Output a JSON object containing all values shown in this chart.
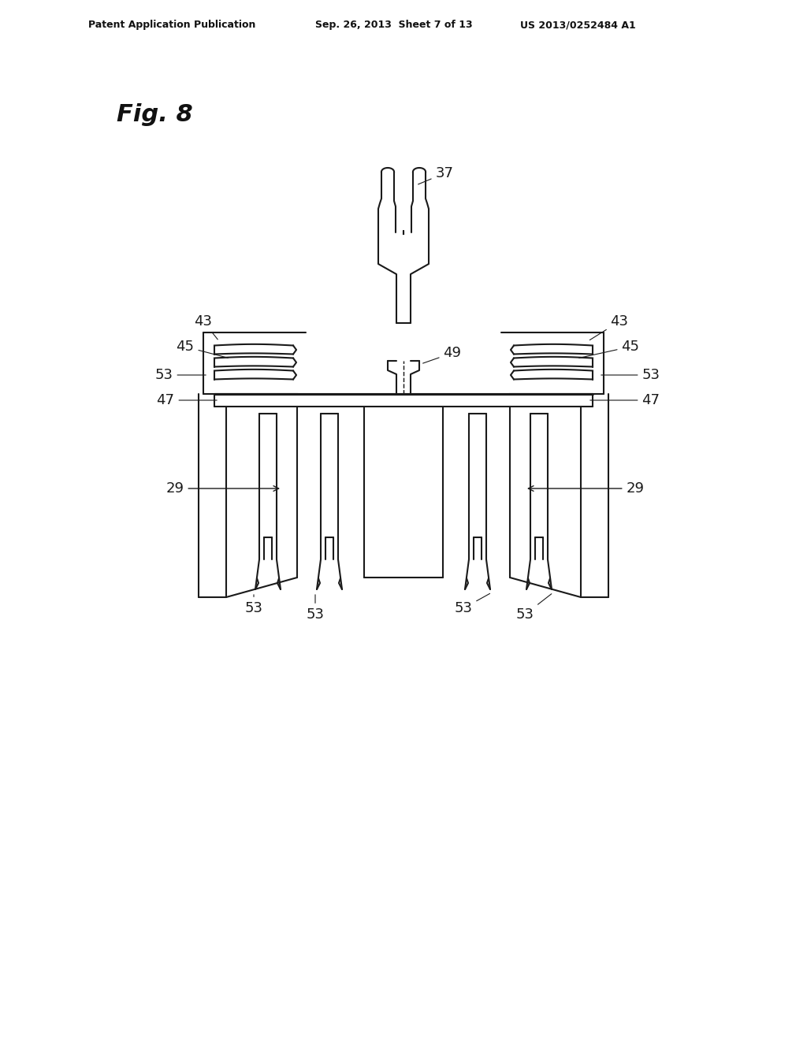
{
  "bg_color": "#ffffff",
  "line_color": "#1a1a1a",
  "line_width": 1.5,
  "header_text_left": "Patent Application Publication",
  "header_text_mid": "Sep. 26, 2013  Sheet 7 of 13",
  "header_text_right": "US 2013/0252484 A1",
  "fig_label": "Fig. 8",
  "label_37": "37",
  "label_43": "43",
  "label_45": "45",
  "label_49": "49",
  "label_53": "53",
  "label_47": "47",
  "label_29": "29"
}
